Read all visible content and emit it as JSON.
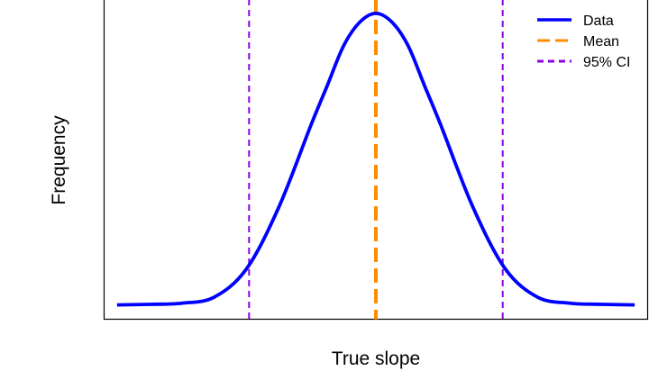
{
  "chart_data": {
    "type": "line",
    "title": "",
    "xlabel": "True slope",
    "ylabel": "Frequency",
    "xlim": [
      -4.2,
      4.2
    ],
    "ylim": [
      -0.12,
      1.0
    ],
    "grid": false,
    "legend": "top-right",
    "series": [
      {
        "name": "Data",
        "color": "#0000ff",
        "style": "solid",
        "x": [
          -4.0,
          -3.5,
          -3.0,
          -2.5,
          -2.0,
          -1.5,
          -1.0,
          -0.75,
          -0.5,
          -0.25,
          0.0,
          0.25,
          0.5,
          0.75,
          1.0,
          1.5,
          2.0,
          2.5,
          3.0,
          3.5,
          4.0
        ],
        "y": [
          -0.07,
          -0.068,
          -0.064,
          -0.043,
          0.056,
          0.272,
          0.561,
          0.698,
          0.836,
          0.919,
          0.95,
          0.919,
          0.836,
          0.698,
          0.561,
          0.272,
          0.056,
          -0.043,
          -0.064,
          -0.068,
          -0.07
        ]
      }
    ],
    "vlines": [
      {
        "name": "Mean",
        "x": 0.0,
        "color": "#ff8c00",
        "style": "dashed-thick"
      },
      {
        "name": "95% CI",
        "x": -1.96,
        "color": "#8b00e6",
        "style": "dashed"
      },
      {
        "name": "95% CI",
        "x": 1.96,
        "color": "#8b00e6",
        "style": "dashed"
      }
    ],
    "legend_entries": [
      {
        "label": "Data",
        "color": "#0000ff",
        "style": "solid"
      },
      {
        "label": "Mean",
        "color": "#ff8c00",
        "style": "dashed-thick"
      },
      {
        "label": "95% CI",
        "color": "#8b00e6",
        "style": "dashed"
      }
    ]
  }
}
